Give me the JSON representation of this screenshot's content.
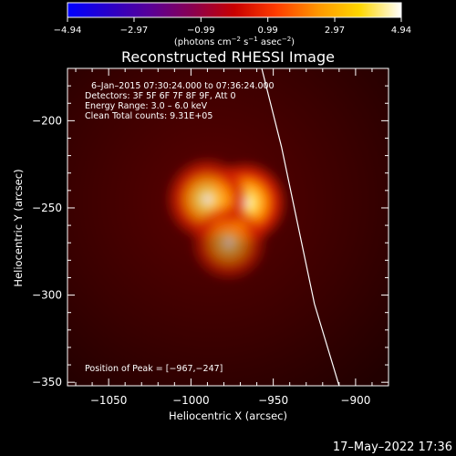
{
  "chart_data": {
    "type": "heatmap",
    "title": "Reconstructed RHESSI Image",
    "xlabel": "Heliocentric X (arcsec)",
    "ylabel": "Heliocentric Y (arcsec)",
    "xlim": [
      -1075,
      -880
    ],
    "ylim": [
      -352,
      -170
    ],
    "x_ticks": [
      -1050,
      -1000,
      -950,
      -900
    ],
    "y_ticks": [
      -200,
      -250,
      -300,
      -350
    ],
    "x_tick_labels": [
      "−1050",
      "−1000",
      "−950",
      "−900"
    ],
    "y_tick_labels": [
      "−200",
      "−250",
      "−300",
      "−350"
    ],
    "colorbar": {
      "min": -4.94,
      "max": 4.94,
      "ticks": [
        -4.94,
        -2.97,
        -0.99,
        0.99,
        2.97,
        4.94
      ],
      "tick_labels": [
        "−4.94",
        "−2.97",
        "−0.99",
        "0.99",
        "2.97",
        "4.94"
      ],
      "unit_prefix": "(photons cm",
      "unit_sup1": "−2",
      "unit_mid1": " s",
      "unit_sup2": "−1",
      "unit_mid2": " asec",
      "unit_sup3": "−2",
      "unit_suffix": ")",
      "colors": [
        "#0000ff",
        "#2a00c8",
        "#5a0096",
        "#8a0050",
        "#c80000",
        "#ff3c00",
        "#ff9600",
        "#ffd700",
        "#ffffff"
      ]
    },
    "sources": [
      {
        "x": -967,
        "y": -247,
        "peak": 1.0,
        "width": 12
      },
      {
        "x": -990,
        "y": -245,
        "peak": 0.85,
        "width": 12
      },
      {
        "x": -977,
        "y": -270,
        "peak": 0.6,
        "width": 11
      }
    ],
    "limb_curve": [
      [
        -957,
        -170
      ],
      [
        -945,
        -215
      ],
      [
        -935,
        -260
      ],
      [
        -925,
        -305
      ],
      [
        -910,
        -352
      ]
    ],
    "peak_position": [
      -967,
      -247
    ]
  },
  "annotations": {
    "time_range": "6–Jan–2015 07:30:24.000 to 07:36:24.000",
    "detectors": "Detectors: 3F 5F 6F 7F 8F 9F, Att 0",
    "energy": "Energy Range: 3.0 – 6.0 keV",
    "clean": "Clean    Total counts: 9.31E+05",
    "peak": "Position of Peak = [−967,−247]"
  },
  "footer": {
    "timestamp": "17–May–2022 17:36"
  }
}
